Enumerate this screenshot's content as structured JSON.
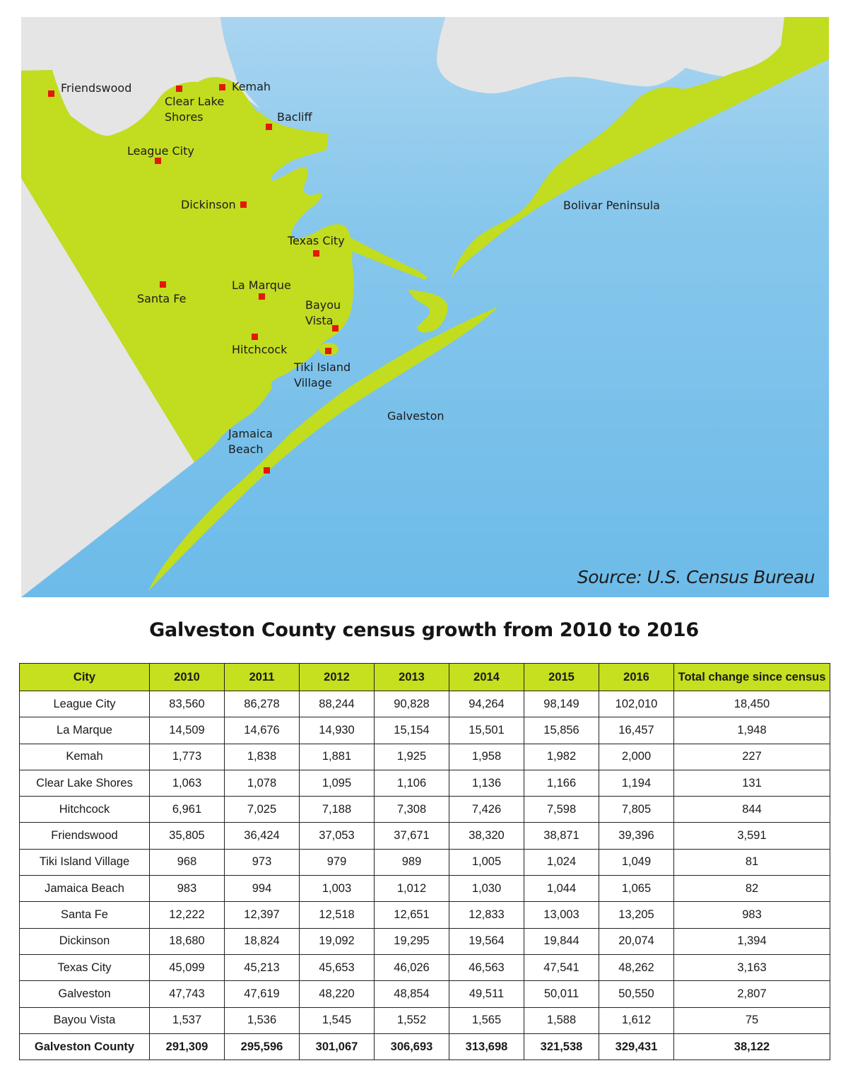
{
  "map": {
    "colors": {
      "water": "#7cc2ea",
      "land": "#c2dc1f",
      "outside_land": "#e4e4e4",
      "marker": "#e3170a"
    },
    "places": [
      {
        "id": "friendswood",
        "label": "Friendswood"
      },
      {
        "id": "clear-lake-shores",
        "label": "Clear Lake\nShores"
      },
      {
        "id": "kemah",
        "label": "Kemah"
      },
      {
        "id": "bacliff",
        "label": "Bacliff"
      },
      {
        "id": "league-city",
        "label": "League City"
      },
      {
        "id": "dickinson",
        "label": "Dickinson"
      },
      {
        "id": "texas-city",
        "label": "Texas City"
      },
      {
        "id": "santa-fe",
        "label": "Santa Fe"
      },
      {
        "id": "la-marque",
        "label": "La Marque"
      },
      {
        "id": "bayou-vista",
        "label": "Bayou\nVista"
      },
      {
        "id": "hitchcock",
        "label": "Hitchcock"
      },
      {
        "id": "tiki-island-village",
        "label": "Tiki Island\nVillage"
      },
      {
        "id": "jamaica-beach",
        "label": "Jamaica\nBeach"
      },
      {
        "id": "galveston",
        "label": "Galveston"
      },
      {
        "id": "bolivar-peninsula",
        "label": "Bolivar Peninsula"
      }
    ],
    "source": "Source: U.S. Census Bureau"
  },
  "table": {
    "title": "Galveston County census growth from 2010 to 2016",
    "header_color": "#c6df1f",
    "headers": [
      "City",
      "2010",
      "2011",
      "2012",
      "2013",
      "2014",
      "2015",
      "2016",
      "Total change since census"
    ],
    "rows": [
      [
        "League City",
        "83,560",
        "86,278",
        "88,244",
        "90,828",
        "94,264",
        "98,149",
        "102,010",
        "18,450"
      ],
      [
        "La Marque",
        "14,509",
        "14,676",
        "14,930",
        "15,154",
        "15,501",
        "15,856",
        "16,457",
        "1,948"
      ],
      [
        "Kemah",
        "1,773",
        "1,838",
        "1,881",
        "1,925",
        "1,958",
        "1,982",
        "2,000",
        "227"
      ],
      [
        "Clear Lake Shores",
        "1,063",
        "1,078",
        "1,095",
        "1,106",
        "1,136",
        "1,166",
        "1,194",
        "131"
      ],
      [
        "Hitchcock",
        "6,961",
        "7,025",
        "7,188",
        "7,308",
        "7,426",
        "7,598",
        "7,805",
        "844"
      ],
      [
        "Friendswood",
        "35,805",
        "36,424",
        "37,053",
        "37,671",
        "38,320",
        "38,871",
        "39,396",
        "3,591"
      ],
      [
        "Tiki Island Village",
        "968",
        "973",
        "979",
        "989",
        "1,005",
        "1,024",
        "1,049",
        "81"
      ],
      [
        "Jamaica Beach",
        "983",
        "994",
        "1,003",
        "1,012",
        "1,030",
        "1,044",
        "1,065",
        "82"
      ],
      [
        "Santa Fe",
        "12,222",
        "12,397",
        "12,518",
        "12,651",
        "12,833",
        "13,003",
        "13,205",
        "983"
      ],
      [
        "Dickinson",
        "18,680",
        "18,824",
        "19,092",
        "19,295",
        "19,564",
        "19,844",
        "20,074",
        "1,394"
      ],
      [
        "Texas City",
        "45,099",
        "45,213",
        "45,653",
        "46,026",
        "46,563",
        "47,541",
        "48,262",
        "3,163"
      ],
      [
        "Galveston",
        "47,743",
        "47,619",
        "48,220",
        "48,854",
        "49,511",
        "50,011",
        "50,550",
        "2,807"
      ],
      [
        "Bayou Vista",
        "1,537",
        "1,536",
        "1,545",
        "1,552",
        "1,565",
        "1,588",
        "1,612",
        "75"
      ]
    ],
    "total_row": [
      "Galveston County",
      "291,309",
      "295,596",
      "301,067",
      "306,693",
      "313,698",
      "321,538",
      "329,431",
      "38,122"
    ]
  }
}
